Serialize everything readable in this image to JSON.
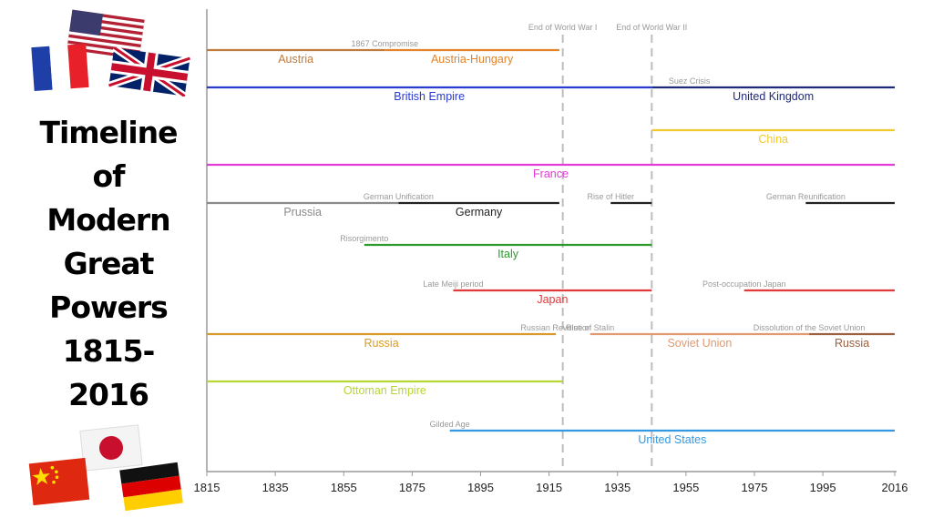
{
  "title_lines": [
    "Timeline",
    "of",
    "Modern",
    "Great",
    "Powers",
    "1815-",
    "2016"
  ],
  "flags": [
    {
      "name": "usa-flag-icon",
      "country": "United States"
    },
    {
      "name": "france-flag-icon",
      "country": "France"
    },
    {
      "name": "uk-flag-icon",
      "country": "United Kingdom"
    },
    {
      "name": "japan-flag-icon",
      "country": "Japan"
    },
    {
      "name": "china-flag-icon",
      "country": "China"
    },
    {
      "name": "germany-flag-icon",
      "country": "Germany"
    }
  ],
  "chart_data": {
    "type": "timeline",
    "title": "",
    "xlabel": "",
    "ylabel": "",
    "xlim": [
      1815,
      2016
    ],
    "x_ticks": [
      1815,
      1835,
      1855,
      1875,
      1895,
      1915,
      1935,
      1955,
      1975,
      1995,
      2016
    ],
    "grid": false,
    "vertical_markers": [
      {
        "year": 1919,
        "label": "End of World War I"
      },
      {
        "year": 1945,
        "label": "End of World War II"
      }
    ],
    "rows": [
      {
        "segments": [
          {
            "start": 1815,
            "end": 1867,
            "label": "Austria",
            "color": "#c07a3e"
          },
          {
            "start": 1867,
            "end": 1918,
            "label": "Austria-Hungary",
            "color": "#e4832a"
          }
        ],
        "events": [
          {
            "year": 1867,
            "label": "1867 Compromise"
          }
        ]
      },
      {
        "segments": [
          {
            "start": 1815,
            "end": 1945,
            "label": "British Empire",
            "color": "#2a3acf"
          },
          {
            "start": 1945,
            "end": 2016,
            "label": "United Kingdom",
            "color": "#1f2a7c"
          }
        ],
        "events": [
          {
            "year": 1956,
            "label": "Suez Crisis"
          }
        ]
      },
      {
        "segments": [
          {
            "start": 1945,
            "end": 2016,
            "label": "China",
            "color": "#f2c82c"
          }
        ],
        "events": []
      },
      {
        "segments": [
          {
            "start": 1815,
            "end": 2016,
            "label": "France",
            "color": "#e23bd6"
          }
        ],
        "events": []
      },
      {
        "segments": [
          {
            "start": 1815,
            "end": 1871,
            "label": "Prussia",
            "color": "#8a8a8a"
          },
          {
            "start": 1871,
            "end": 1918,
            "label": "Germany",
            "color": "#222222"
          },
          {
            "start": 1933,
            "end": 1945,
            "label": "",
            "color": "#222222"
          },
          {
            "start": 1990,
            "end": 2016,
            "label": "",
            "color": "#222222"
          }
        ],
        "events": [
          {
            "year": 1871,
            "label": "German Unification"
          },
          {
            "year": 1933,
            "label": "Rise of Hitler"
          },
          {
            "year": 1990,
            "label": "German Reunification"
          }
        ]
      },
      {
        "segments": [
          {
            "start": 1861,
            "end": 1945,
            "label": "Italy",
            "color": "#2e9a2e"
          }
        ],
        "events": [
          {
            "year": 1861,
            "label": "Risorgimento"
          }
        ]
      },
      {
        "segments": [
          {
            "start": 1887,
            "end": 1945,
            "label": "Japan",
            "color": "#e03a3a"
          },
          {
            "start": 1972,
            "end": 2016,
            "label": "",
            "color": "#e03a3a"
          }
        ],
        "events": [
          {
            "year": 1887,
            "label": "Late Meiji period"
          },
          {
            "year": 1972,
            "label": "Post-occupation Japan"
          }
        ]
      },
      {
        "segments": [
          {
            "start": 1815,
            "end": 1917,
            "label": "Russia",
            "color": "#d99a2a"
          },
          {
            "start": 1927,
            "end": 1991,
            "label": "Soviet Union",
            "color": "#e09a72"
          },
          {
            "start": 1991,
            "end": 2016,
            "label": "Russia",
            "color": "#9a6040"
          }
        ],
        "events": [
          {
            "year": 1917,
            "label": "Russian Revolution"
          },
          {
            "year": 1927,
            "label": "Rise of Stalin"
          },
          {
            "year": 1991,
            "label": "Dissolution of the Soviet Union"
          }
        ]
      },
      {
        "segments": [
          {
            "start": 1815,
            "end": 1919,
            "label": "Ottoman Empire",
            "color": "#b5d633"
          }
        ],
        "events": []
      },
      {
        "segments": [
          {
            "start": 1886,
            "end": 2016,
            "label": "United States",
            "color": "#3399e0"
          }
        ],
        "events": [
          {
            "year": 1886,
            "label": "Gilded Age"
          }
        ]
      }
    ]
  }
}
